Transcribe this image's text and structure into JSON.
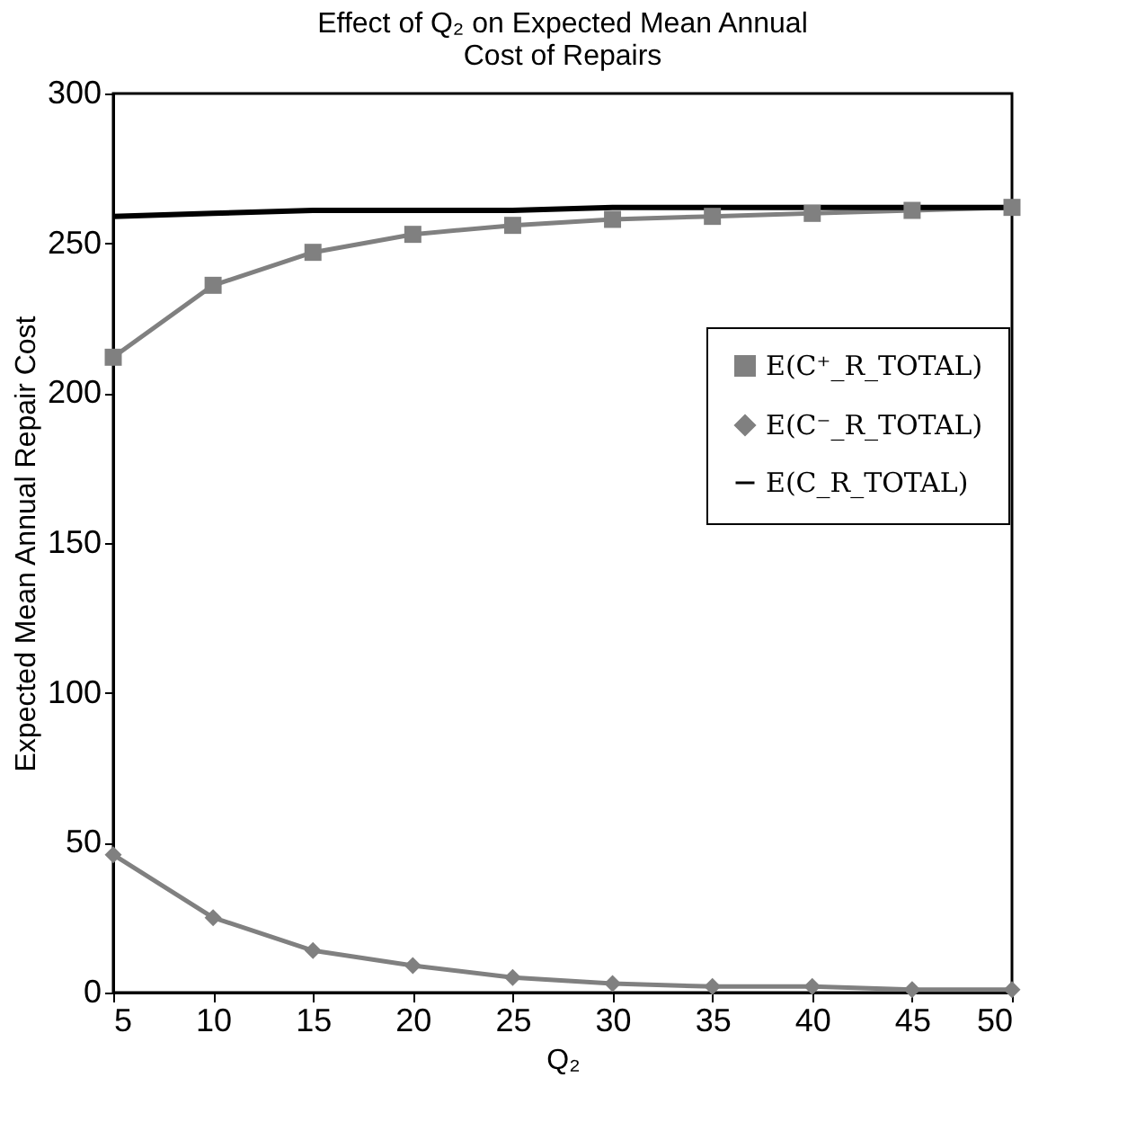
{
  "chart_data": {
    "type": "line",
    "title": [
      "Effect of Q₂ on Expected Mean Annual",
      "Cost of Repairs"
    ],
    "xlabel": "Q₂",
    "ylabel": "Expected Mean Annual Repair Cost",
    "x": [
      5,
      10,
      15,
      20,
      25,
      30,
      35,
      40,
      45,
      50
    ],
    "series": [
      {
        "name": "E(C⁺_R_TOTAL)",
        "color": "#808080",
        "marker": "square",
        "values": [
          212,
          236,
          247,
          253,
          256,
          258,
          259,
          260,
          261,
          262
        ]
      },
      {
        "name": "E(C⁻_R_TOTAL)",
        "color": "#808080",
        "marker": "diamond",
        "values": [
          46,
          25,
          14,
          9,
          5,
          3,
          2,
          2,
          1,
          1
        ]
      },
      {
        "name": "E(C_R_TOTAL)",
        "color": "#000000",
        "marker": "none",
        "values": [
          259,
          260,
          261,
          261,
          261,
          262,
          262,
          262,
          262,
          262
        ]
      }
    ],
    "xlim": [
      5,
      50
    ],
    "xticks": [
      5,
      10,
      15,
      20,
      25,
      30,
      35,
      40,
      45,
      50
    ],
    "ylim": [
      0,
      300
    ],
    "yticks": [
      0,
      50,
      100,
      150,
      200,
      250,
      300
    ],
    "grid": false,
    "legend": "right"
  }
}
